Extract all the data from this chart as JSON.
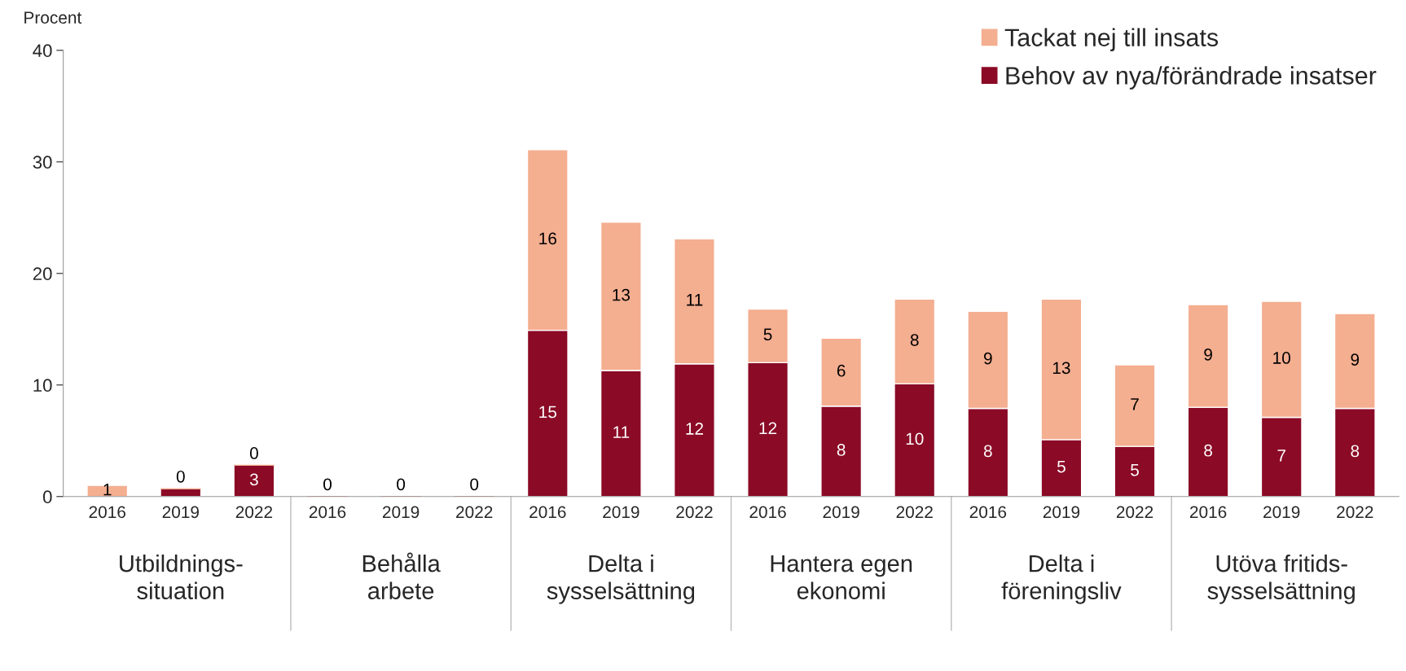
{
  "chart_data": {
    "type": "bar",
    "stacked": true,
    "ylabel": "Procent",
    "categories": [
      "2016",
      "2019",
      "2022",
      "2016",
      "2019",
      "2022",
      "2016",
      "2019",
      "2022",
      "2016",
      "2019",
      "2022",
      "2016",
      "2019",
      "2022",
      "2016",
      "2019",
      "2022"
    ],
    "annotations": [
      "Utbildnings-\nsituation",
      "Behålla\narbete",
      "Delta i\nsysselsättning",
      "Hantera egen\nekonomi",
      "Delta i\nföreningsliv",
      "Utöva fritids-\nsysselsättning"
    ],
    "series": [
      {
        "name": "Behov av nya/förändrade insatser",
        "color": "#8b0a26",
        "values": [
          0,
          0.7,
          2.8,
          0,
          0,
          0,
          14.9,
          11.3,
          11.9,
          12.0,
          8.1,
          10.1,
          7.9,
          5.1,
          4.5,
          8.0,
          7.1,
          7.9
        ],
        "value_labels": [
          null,
          null,
          "3",
          null,
          null,
          null,
          "15",
          "11",
          "12",
          "12",
          "8",
          "10",
          "8",
          "5",
          "5",
          "8",
          "7",
          "8"
        ]
      },
      {
        "name": "Tackat nej till insats",
        "color": "#f4ae90",
        "values": [
          1.0,
          0,
          0,
          0,
          0,
          0,
          16.2,
          13.3,
          11.2,
          4.8,
          6.1,
          7.6,
          8.7,
          12.6,
          7.3,
          9.2,
          10.4,
          8.5
        ],
        "value_labels": [
          "1",
          "0",
          "0",
          "0",
          "0",
          "0",
          "16",
          "13",
          "11",
          "5",
          "6",
          "8",
          "9",
          "13",
          "7",
          "9",
          "10",
          "9"
        ]
      }
    ],
    "ylim": [
      0,
      40
    ],
    "yticks": [
      0,
      10,
      20,
      30,
      40
    ],
    "grid": false,
    "legend": "top right"
  }
}
